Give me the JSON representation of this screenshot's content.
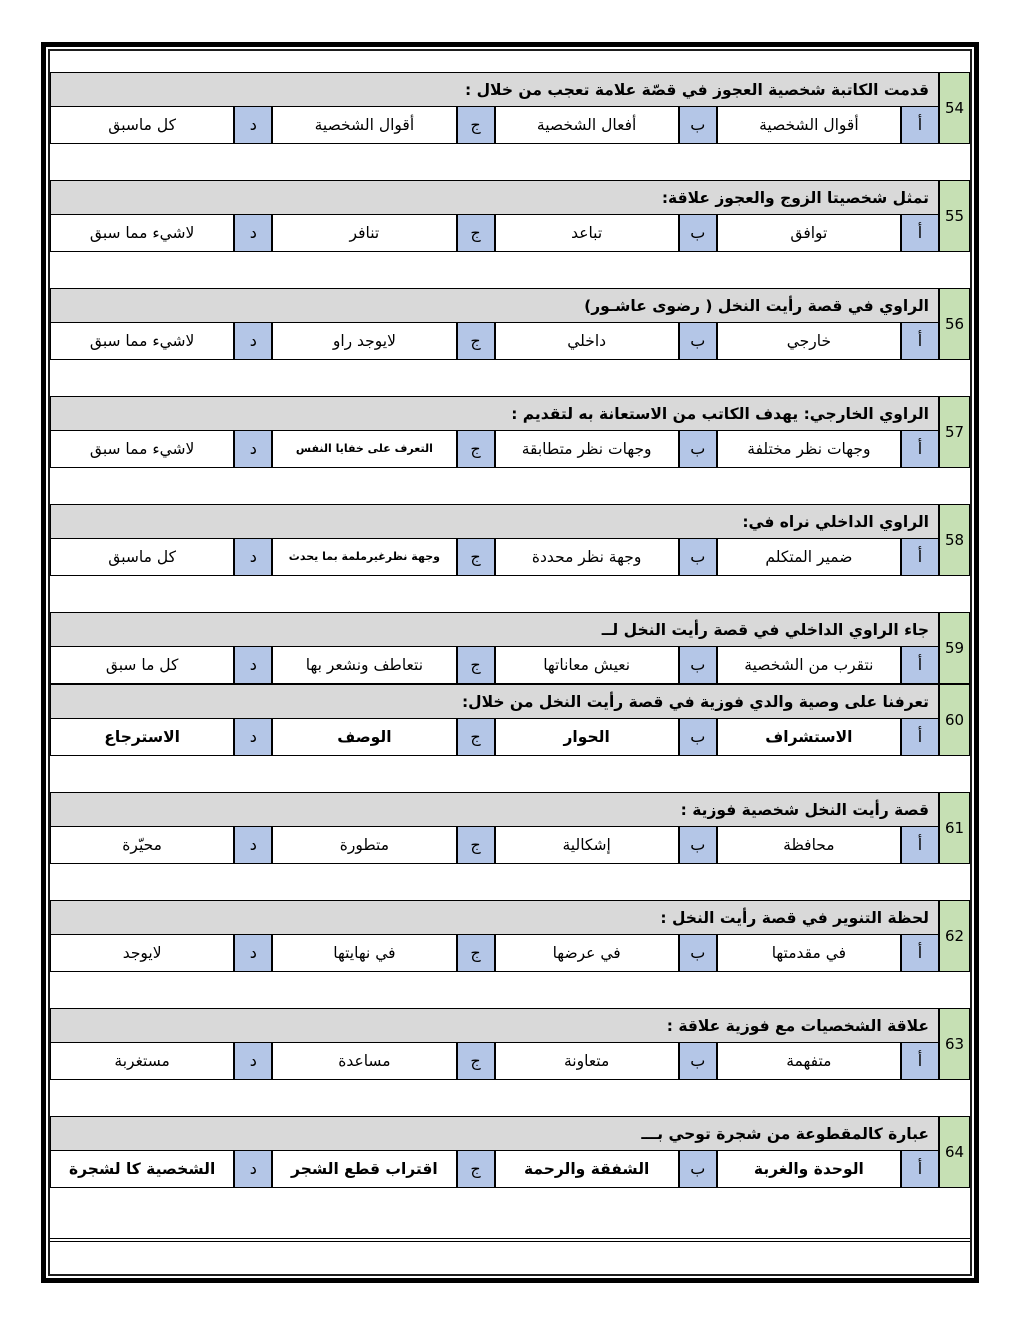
{
  "colors": {
    "green": "#c6e0b4",
    "blue": "#b4c6e7",
    "gray": "#d9d9d9",
    "border": "#000000"
  },
  "questions": [
    {
      "number": "54",
      "header": "قدمت الكاتبة شخصية العجوز في قصّة علامة تعجب من خلال :",
      "options": [
        {
          "letter": "أ",
          "text": "أقوال الشخصية"
        },
        {
          "letter": "ب",
          "text": "أفعال الشخصية"
        },
        {
          "letter": "ج",
          "text": "أقوال الشخصية"
        },
        {
          "letter": "د",
          "text": "كل ماسبق"
        }
      ],
      "bold_options": false,
      "spacer_after": true
    },
    {
      "number": "55",
      "header": "تمثل شخصيتا الزوج والعجوز علاقة:",
      "options": [
        {
          "letter": "أ",
          "text": "توافق"
        },
        {
          "letter": "ب",
          "text": "تباعد"
        },
        {
          "letter": "ج",
          "text": "تنافر"
        },
        {
          "letter": "د",
          "text": "لاشيء مما سبق"
        }
      ],
      "bold_options": false,
      "spacer_after": true
    },
    {
      "number": "56",
      "header": "الراوي في قصة رأيت النخل ( رضوى عاشـور)",
      "options": [
        {
          "letter": "أ",
          "text": "خارجي"
        },
        {
          "letter": "ب",
          "text": "داخلي"
        },
        {
          "letter": "ج",
          "text": "لايوجد راو"
        },
        {
          "letter": "د",
          "text": "لاشيء مما سبق"
        }
      ],
      "bold_options": false,
      "spacer_after": true
    },
    {
      "number": "57",
      "header": "الراوي الخارجي:  يهدف الكاتب من الاستعانة به لتقديم :",
      "options": [
        {
          "letter": "أ",
          "text": "وجهات نظر مختلفة"
        },
        {
          "letter": "ب",
          "text": "وجهات نظر متطابقة"
        },
        {
          "letter": "ج",
          "text": "التعرف على خفايا النفس",
          "small": true
        },
        {
          "letter": "د",
          "text": "لاشيء مما سبق"
        }
      ],
      "bold_options": false,
      "spacer_after": true
    },
    {
      "number": "58",
      "header": "الراوي الداخلي نراه في:",
      "options": [
        {
          "letter": "أ",
          "text": "ضمير المتكلم"
        },
        {
          "letter": "ب",
          "text": "وجهة نظر محددة"
        },
        {
          "letter": "ج",
          "text": "وجهة نظرغيرملمة بما يحدث",
          "small": true
        },
        {
          "letter": "د",
          "text": "كل ماسبق"
        }
      ],
      "bold_options": false,
      "spacer_after": true
    },
    {
      "number": "59",
      "header": "جاء الراوي الداخلي في قصة رأيت النخل لــ",
      "options": [
        {
          "letter": "أ",
          "text": "نتقرب من الشخصية"
        },
        {
          "letter": "ب",
          "text": "نعيش معاناتها"
        },
        {
          "letter": "ج",
          "text": "نتعاطف ونشعر بها"
        },
        {
          "letter": "د",
          "text": "كل ما سبق"
        }
      ],
      "bold_options": false,
      "spacer_after": false
    },
    {
      "number": "60",
      "header": "تعرفنا على وصية والدي فوزية في قصة رأيت النخل من خلال:",
      "options": [
        {
          "letter": "أ",
          "text": "الاستشراف"
        },
        {
          "letter": "ب",
          "text": "الحوار"
        },
        {
          "letter": "ج",
          "text": "الوصف"
        },
        {
          "letter": "د",
          "text": "الاسترجاع"
        }
      ],
      "bold_options": true,
      "spacer_after": true
    },
    {
      "number": "61",
      "header": "قصة رأيت النخل شخصية فوزية :",
      "options": [
        {
          "letter": "أ",
          "text": "محافظة"
        },
        {
          "letter": "ب",
          "text": "إشكالية"
        },
        {
          "letter": "ج",
          "text": "متطورة"
        },
        {
          "letter": "د",
          "text": "محيّرة"
        }
      ],
      "bold_options": false,
      "spacer_after": true
    },
    {
      "number": "62",
      "header": "لحظة التنوير في قصة رأيت النخل :",
      "options": [
        {
          "letter": "أ",
          "text": "في مقدمتها"
        },
        {
          "letter": "ب",
          "text": "في عرضها"
        },
        {
          "letter": "ج",
          "text": "في نهايتها"
        },
        {
          "letter": "د",
          "text": "لايوجد"
        }
      ],
      "bold_options": false,
      "spacer_after": true
    },
    {
      "number": "63",
      "header": "علاقة الشخصيات مع فوزية علاقة :",
      "options": [
        {
          "letter": "أ",
          "text": "متفهمة"
        },
        {
          "letter": "ب",
          "text": "متعاونة"
        },
        {
          "letter": "ج",
          "text": "مساعدة"
        },
        {
          "letter": "د",
          "text": "مستغربة"
        }
      ],
      "bold_options": false,
      "spacer_after": true
    },
    {
      "number": "64",
      "header": "عبارة  كالمقطوعة من شجرة توحي  بـــ",
      "options": [
        {
          "letter": "أ",
          "text": "الوحدة والغربة"
        },
        {
          "letter": "ب",
          "text": "الشفقة والرحمة"
        },
        {
          "letter": "ج",
          "text": "اقتراب قطع الشجر"
        },
        {
          "letter": "د",
          "text": "الشخصية كا لشجرة"
        }
      ],
      "bold_options": true,
      "spacer_after": false
    }
  ]
}
